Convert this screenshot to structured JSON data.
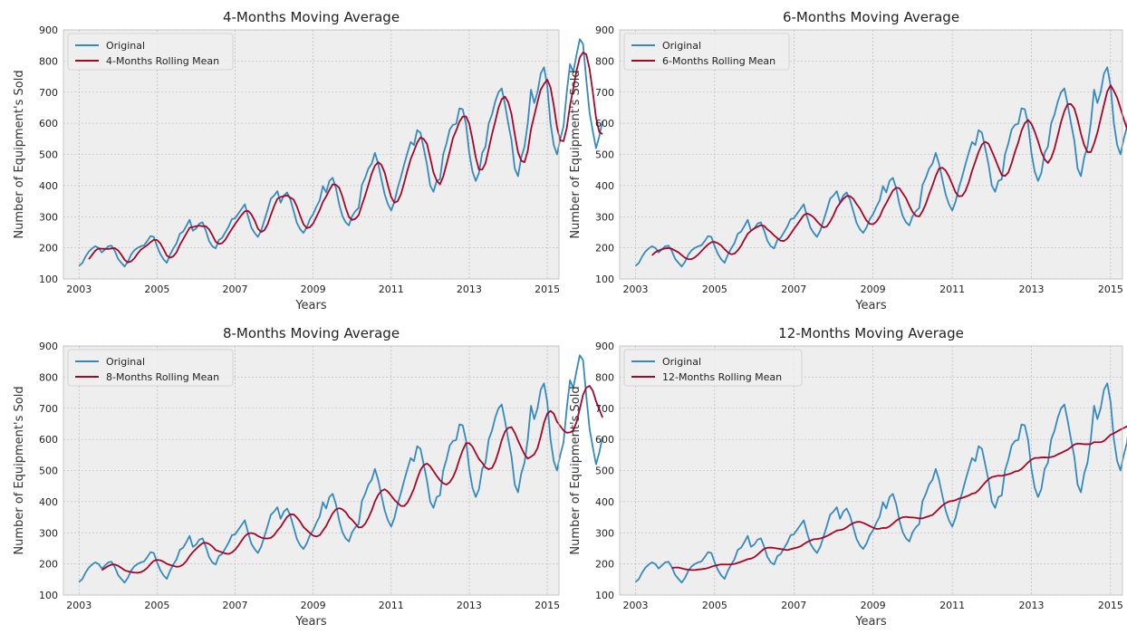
{
  "figure": {
    "colors": {
      "plot_bg": "#eeeeee",
      "grid": "#b0b0b0",
      "original": "#348abd",
      "rolling": "#a60628",
      "frame": "#bcbcbc"
    }
  },
  "chart_data": [
    {
      "type": "line",
      "title": "4-Months Moving Average",
      "xlabel": "Years",
      "ylabel": "Number of Equipment's Sold",
      "xlim": [
        2002.6,
        2015.3
      ],
      "ylim": [
        100,
        900
      ],
      "xticks": [
        "2003",
        "2005",
        "2007",
        "2009",
        "2011",
        "2013",
        "2015"
      ],
      "yticks": [
        "100",
        "200",
        "300",
        "400",
        "500",
        "600",
        "700",
        "800",
        "900"
      ],
      "grid": true,
      "legend": "upper-left",
      "window": 4,
      "series": [
        {
          "name": "Original",
          "color": "#348abd"
        },
        {
          "name": "4-Months Rolling Mean",
          "color": "#a60628"
        }
      ]
    },
    {
      "type": "line",
      "title": "6-Months Moving Average",
      "xlabel": "Years",
      "ylabel": "Number of Equipment's Sold",
      "xlim": [
        2002.6,
        2015.3
      ],
      "ylim": [
        100,
        900
      ],
      "xticks": [
        "2003",
        "2005",
        "2007",
        "2009",
        "2011",
        "2013",
        "2015"
      ],
      "yticks": [
        "100",
        "200",
        "300",
        "400",
        "500",
        "600",
        "700",
        "800",
        "900"
      ],
      "grid": true,
      "legend": "upper-left",
      "window": 6,
      "series": [
        {
          "name": "Original",
          "color": "#348abd"
        },
        {
          "name": "6-Months Rolling Mean",
          "color": "#a60628"
        }
      ]
    },
    {
      "type": "line",
      "title": "8-Months Moving Average",
      "xlabel": "Years",
      "ylabel": "Number of Equipment's Sold",
      "xlim": [
        2002.6,
        2015.3
      ],
      "ylim": [
        100,
        900
      ],
      "xticks": [
        "2003",
        "2005",
        "2007",
        "2009",
        "2011",
        "2013",
        "2015"
      ],
      "yticks": [
        "100",
        "200",
        "300",
        "400",
        "500",
        "600",
        "700",
        "800",
        "900"
      ],
      "grid": true,
      "legend": "upper-left",
      "window": 8,
      "series": [
        {
          "name": "Original",
          "color": "#348abd"
        },
        {
          "name": "8-Months Rolling Mean",
          "color": "#a60628"
        }
      ]
    },
    {
      "type": "line",
      "title": "12-Months Moving Average",
      "xlabel": "Years",
      "ylabel": "Number of Equipment's Sold",
      "xlim": [
        2002.6,
        2015.3
      ],
      "ylim": [
        100,
        900
      ],
      "xticks": [
        "2003",
        "2005",
        "2007",
        "2009",
        "2011",
        "2013",
        "2015"
      ],
      "yticks": [
        "100",
        "200",
        "300",
        "400",
        "500",
        "600",
        "700",
        "800",
        "900"
      ],
      "grid": true,
      "legend": "upper-left",
      "window": 12,
      "series": [
        {
          "name": "Original",
          "color": "#348abd"
        },
        {
          "name": "12-Months Rolling Mean",
          "color": "#a60628"
        }
      ]
    }
  ],
  "original_series": {
    "start": "2003-01",
    "frequency": "monthly",
    "values": [
      142,
      151,
      172,
      188,
      198,
      205,
      200,
      185,
      195,
      205,
      207,
      190,
      165,
      152,
      140,
      155,
      178,
      192,
      200,
      205,
      208,
      222,
      238,
      235,
      205,
      180,
      163,
      152,
      178,
      198,
      215,
      245,
      252,
      270,
      290,
      255,
      262,
      278,
      282,
      255,
      222,
      205,
      198,
      225,
      232,
      250,
      268,
      292,
      295,
      310,
      325,
      340,
      300,
      265,
      248,
      235,
      255,
      288,
      322,
      358,
      368,
      382,
      345,
      368,
      378,
      355,
      318,
      280,
      260,
      248,
      265,
      292,
      308,
      332,
      352,
      398,
      378,
      415,
      425,
      392,
      340,
      302,
      282,
      272,
      302,
      318,
      328,
      402,
      425,
      455,
      470,
      505,
      470,
      420,
      372,
      340,
      320,
      348,
      392,
      428,
      468,
      505,
      540,
      530,
      578,
      570,
      520,
      468,
      400,
      380,
      415,
      420,
      500,
      535,
      580,
      595,
      598,
      648,
      645,
      598,
      505,
      445,
      415,
      440,
      505,
      525,
      600,
      628,
      670,
      700,
      712,
      660,
      600,
      545,
      455,
      430,
      490,
      525,
      600,
      708,
      665,
      700,
      760,
      780,
      720,
      600,
      530,
      500,
      550,
      590,
      700,
      790,
      765,
      820,
      870,
      855,
      740,
      635,
      575,
      520,
      558,
      608
    ]
  }
}
